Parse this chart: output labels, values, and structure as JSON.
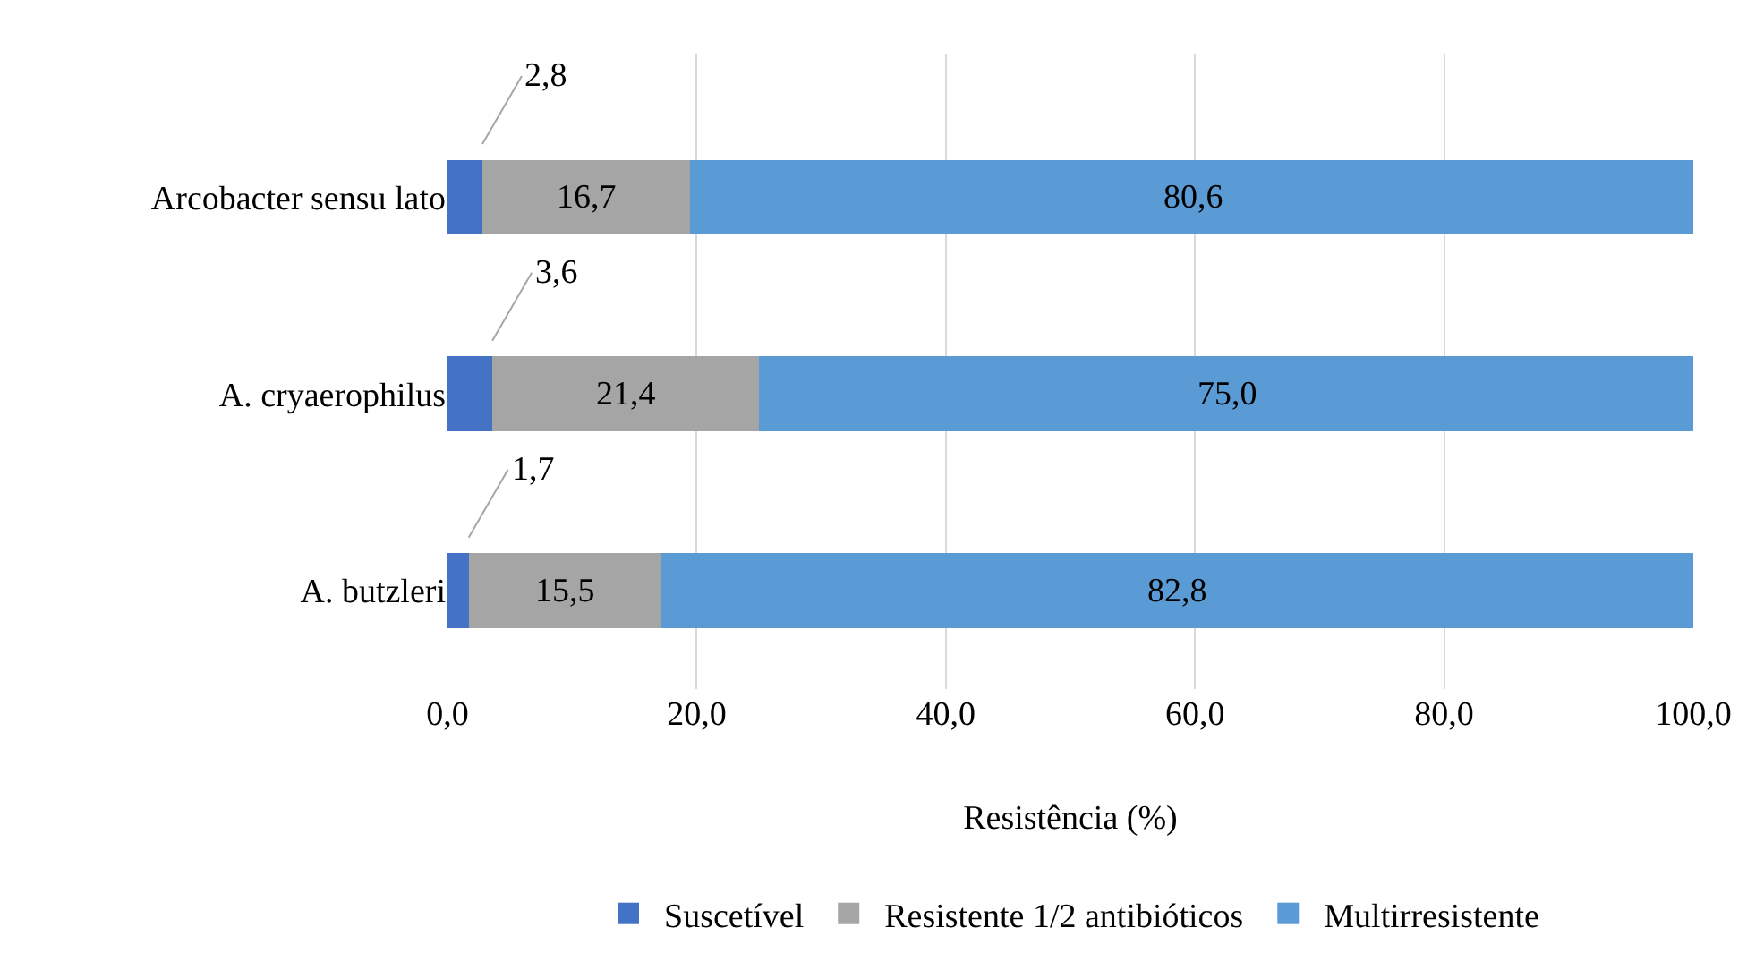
{
  "chart_data": {
    "type": "bar",
    "orientation": "horizontal",
    "stacked": true,
    "xlabel": "Resistência (%)",
    "categories": [
      "Arcobacter sensu lato",
      "A. cryaerophilus",
      "A. butzleri"
    ],
    "series": [
      {
        "name": "Suscetível",
        "color": "#4472c4",
        "values": [
          2.8,
          3.6,
          1.7
        ],
        "value_labels": [
          "2,8",
          "3,6",
          "1,7"
        ]
      },
      {
        "name": "Resistente 1/2 antibióticos",
        "color": "#a5a5a5",
        "values": [
          16.7,
          21.4,
          15.5
        ],
        "value_labels": [
          "16,7",
          "21,4",
          "15,5"
        ]
      },
      {
        "name": "Multirresistente",
        "color": "#5b9bd5",
        "values": [
          80.6,
          75.0,
          82.8
        ],
        "value_labels": [
          "80,6",
          "75,0",
          "82,8"
        ]
      }
    ],
    "xlim": [
      0,
      100
    ],
    "xticks": [
      {
        "value": 0,
        "label": "0,0"
      },
      {
        "value": 20,
        "label": "20,0"
      },
      {
        "value": 40,
        "label": "40,0"
      },
      {
        "value": 60,
        "label": "60,0"
      },
      {
        "value": 80,
        "label": "80,0"
      },
      {
        "value": 100,
        "label": "100,0"
      }
    ],
    "grid": "x",
    "legend": "bottom"
  }
}
